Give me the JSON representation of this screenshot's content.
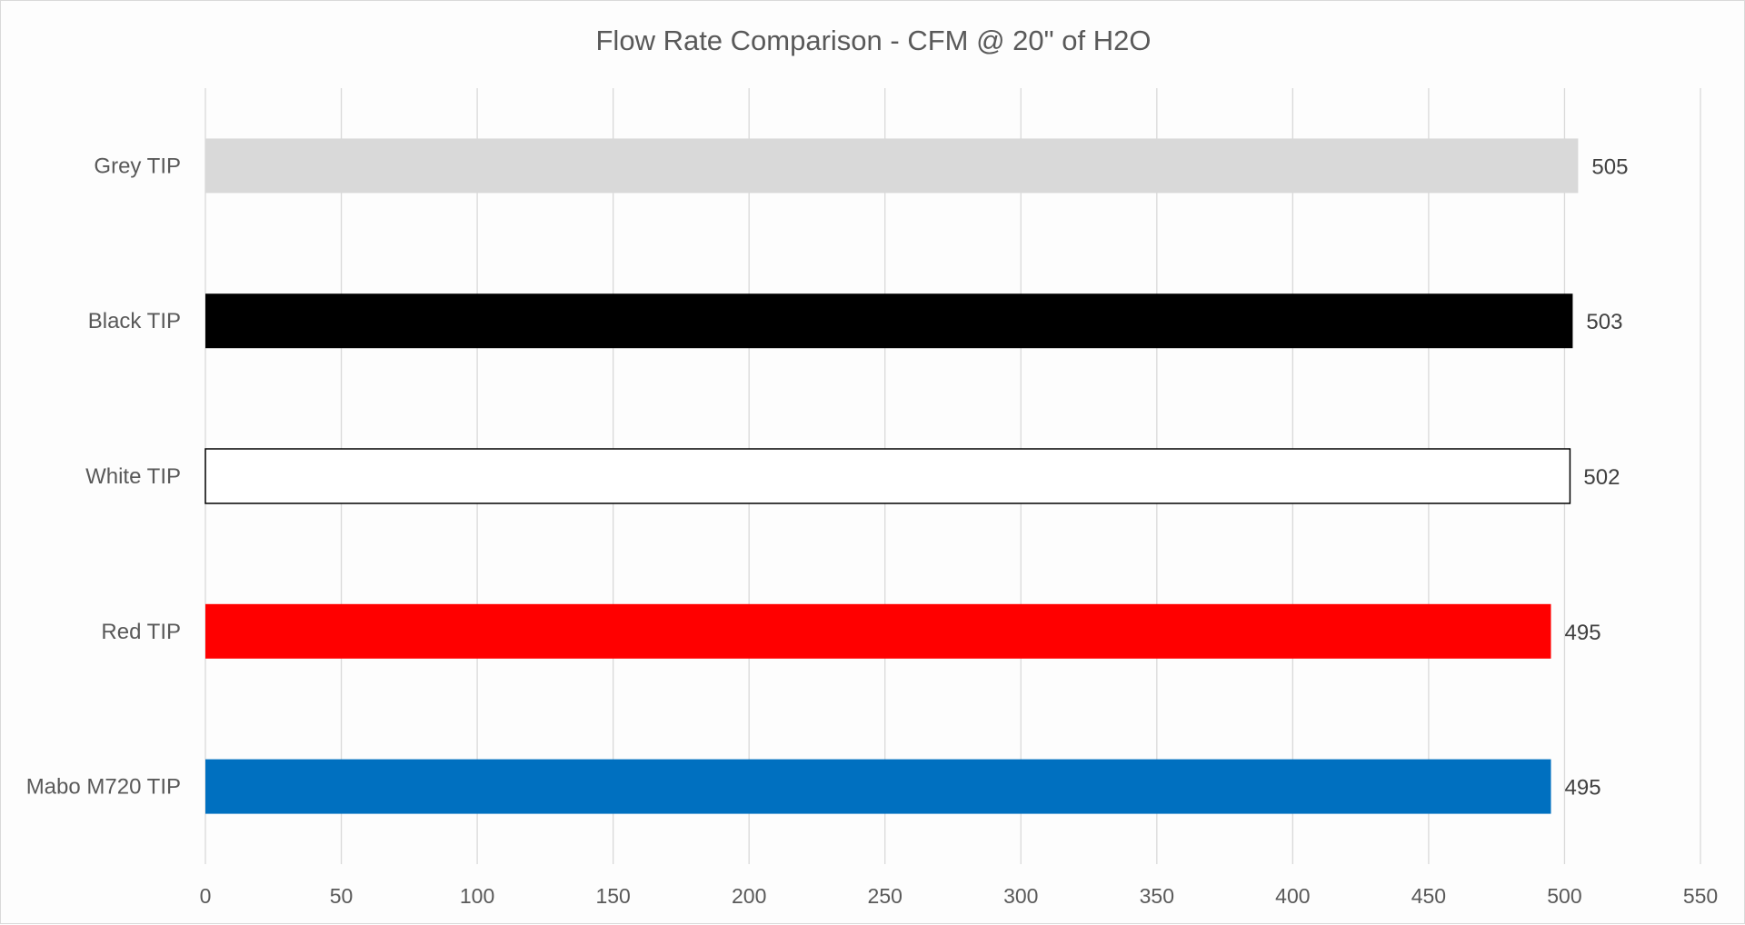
{
  "chart_data": {
    "type": "bar",
    "orientation": "horizontal",
    "title": "Flow Rate Comparison - CFM @ 20\" of H2O",
    "categories": [
      "Grey TIP",
      "Black TIP",
      "White TIP",
      "Red TIP",
      "Mabo M720 TIP"
    ],
    "values": [
      505,
      503,
      502,
      495,
      495
    ],
    "colors": [
      "#d9d9d9",
      "#000000",
      "#ffffff",
      "#ff0000",
      "#0070c0"
    ],
    "outline_colors": [
      "none",
      "none",
      "#000000",
      "none",
      "none"
    ],
    "xlim": [
      0,
      550
    ],
    "xticks": [
      0,
      50,
      100,
      150,
      200,
      250,
      300,
      350,
      400,
      450,
      500,
      550
    ],
    "xlabel": "",
    "ylabel": "",
    "grid": "vertical",
    "legend": "none",
    "data_labels": true
  }
}
